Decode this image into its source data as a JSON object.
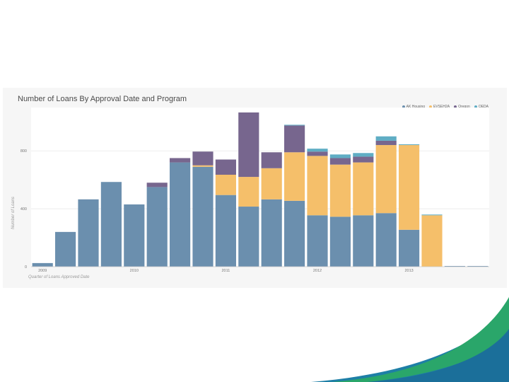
{
  "chart_data": {
    "type": "bar",
    "stacked": true,
    "title": "Number of Loans By Approval Date and Program",
    "xlabel": "Quarter of Loans Approved Date",
    "ylabel": "Number of Loans",
    "ylim": [
      0,
      1060
    ],
    "yticks": [
      0,
      400,
      800
    ],
    "xtick_labels": [
      {
        "index": 0,
        "label": "2009"
      },
      {
        "index": 4,
        "label": "2010"
      },
      {
        "index": 8,
        "label": "2011"
      },
      {
        "index": 12,
        "label": "2012"
      },
      {
        "index": 16,
        "label": "2013"
      }
    ],
    "grid": true,
    "legend_position": "top-right",
    "categories": [
      "2009 Q1",
      "2009 Q2",
      "2009 Q3",
      "2009 Q4",
      "2010 Q1",
      "2010 Q2",
      "2010 Q3",
      "2010 Q4",
      "2011 Q1",
      "2011 Q2",
      "2011 Q3",
      "2011 Q4",
      "2012 Q1",
      "2012 Q2",
      "2012 Q3",
      "2012 Q4",
      "2013 Q1",
      "2013 Q2",
      "2013 Q3",
      "2013 Q4"
    ],
    "series": [
      {
        "name": "AK Housing",
        "color": "#6b8fae",
        "values": [
          25,
          240,
          465,
          585,
          430,
          550,
          720,
          690,
          495,
          415,
          465,
          455,
          355,
          345,
          355,
          370,
          255,
          0,
          5,
          5
        ]
      },
      {
        "name": "EVSEH2A",
        "color": "#f5bf6a",
        "values": [
          0,
          0,
          0,
          0,
          0,
          0,
          0,
          10,
          140,
          205,
          215,
          335,
          410,
          360,
          365,
          470,
          585,
          355,
          0,
          0
        ]
      },
      {
        "name": "Oregon",
        "color": "#77668e",
        "values": [
          0,
          0,
          0,
          0,
          0,
          30,
          30,
          95,
          105,
          445,
          110,
          185,
          30,
          45,
          40,
          30,
          0,
          0,
          0,
          0
        ]
      },
      {
        "name": "OEDA",
        "color": "#5fadc4",
        "values": [
          0,
          0,
          0,
          0,
          0,
          0,
          0,
          0,
          0,
          0,
          0,
          5,
          20,
          25,
          25,
          30,
          5,
          5,
          0,
          0
        ]
      }
    ]
  }
}
